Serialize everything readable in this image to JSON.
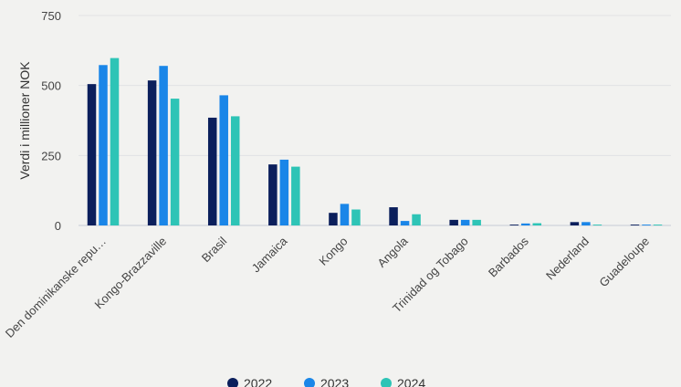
{
  "chart_data": {
    "type": "bar",
    "title": "",
    "xlabel": "",
    "ylabel": "Verdi i millioner NOK",
    "ylim": [
      0,
      750
    ],
    "yticks": [
      0,
      250,
      500,
      750
    ],
    "ytick_labels": [
      "0",
      "250",
      "500",
      "750"
    ],
    "grid": true,
    "legend_position": "bottom-center",
    "categories": [
      "Den dominikanske repu…",
      "Kongo-Brazzaville",
      "Brasil",
      "Jamaica",
      "Kongo",
      "Angola",
      "Trinidad og Tobago",
      "Barbados",
      "Nederland",
      "Guadeloupe"
    ],
    "series": [
      {
        "name": "2022",
        "color": "#0b1f5c",
        "values": [
          505,
          518,
          385,
          218,
          45,
          65,
          20,
          3,
          12,
          3
        ]
      },
      {
        "name": "2023",
        "color": "#1a86e8",
        "values": [
          573,
          570,
          465,
          235,
          77,
          16,
          20,
          7,
          12,
          3
        ]
      },
      {
        "name": "2024",
        "color": "#2ec4b6",
        "values": [
          598,
          453,
          390,
          210,
          57,
          40,
          20,
          8,
          3,
          3
        ]
      }
    ]
  }
}
